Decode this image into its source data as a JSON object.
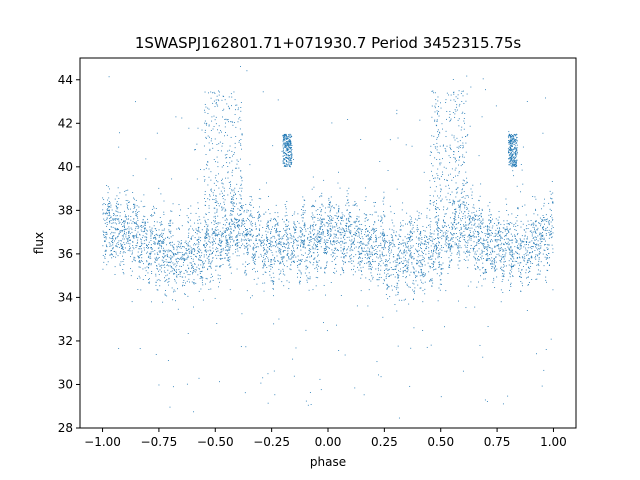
{
  "chart_data": {
    "type": "scatter",
    "title": "1SWASPJ162801.71+071930.7 Period 3452315.75s",
    "xlabel": "phase",
    "ylabel": "flux",
    "xlim": [
      -1.1,
      1.1
    ],
    "ylim": [
      28.0,
      45.0
    ],
    "xticks": [
      -1.0,
      -0.75,
      -0.5,
      -0.25,
      0.0,
      0.25,
      0.5,
      0.75,
      1.0
    ],
    "xtick_labels": [
      "−1.00",
      "−0.75",
      "−0.50",
      "−0.25",
      "0.00",
      "0.25",
      "0.50",
      "0.75",
      "1.00"
    ],
    "yticks": [
      28,
      30,
      32,
      34,
      36,
      38,
      40,
      42,
      44
    ],
    "ytick_labels": [
      "28",
      "30",
      "32",
      "34",
      "36",
      "38",
      "40",
      "42",
      "44"
    ],
    "grid": false,
    "marker_color": "#1f77b4",
    "x_range_of_points": [
      -1.0,
      1.0
    ],
    "profile": {
      "phase": [
        -1.0,
        -0.9,
        -0.8,
        -0.7,
        -0.6,
        -0.5,
        -0.4,
        -0.3,
        -0.2,
        -0.1,
        0.0,
        0.1,
        0.2,
        0.3,
        0.4,
        0.5,
        0.6,
        0.7,
        0.8,
        0.9,
        1.0
      ],
      "flux_center": [
        37.2,
        37.0,
        36.5,
        35.8,
        36.0,
        36.4,
        37.4,
        36.5,
        36.3,
        36.4,
        37.0,
        36.9,
        36.4,
        35.8,
        36.0,
        36.4,
        37.4,
        36.5,
        36.3,
        36.4,
        37.1
      ],
      "flux_spread": [
        1.9,
        1.7,
        1.8,
        2.1,
        1.9,
        1.7,
        1.8,
        1.7,
        1.6,
        1.8,
        1.9,
        1.7,
        1.8,
        2.1,
        1.9,
        1.7,
        1.8,
        1.7,
        1.6,
        1.8,
        1.9
      ]
    },
    "features": [
      {
        "phase": [
          -0.55,
          -0.38
        ],
        "flux": [
          38.0,
          43.5
        ]
      },
      {
        "phase": [
          0.45,
          0.62
        ],
        "flux": [
          38.0,
          43.5
        ]
      },
      {
        "phase": [
          -0.2,
          -0.16
        ],
        "flux": [
          40.0,
          41.5
        ]
      },
      {
        "phase": [
          0.8,
          0.84
        ],
        "flux": [
          40.0,
          41.5
        ]
      }
    ]
  }
}
